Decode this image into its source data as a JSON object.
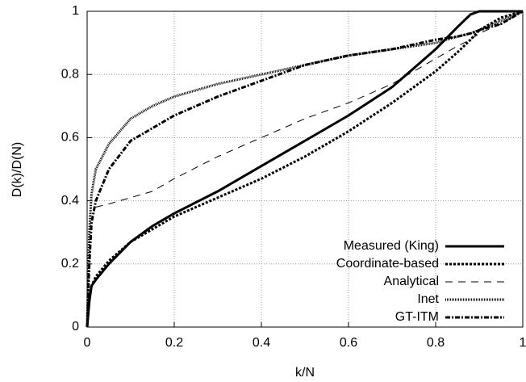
{
  "chart_data": {
    "type": "line",
    "xlabel": "k/N",
    "ylabel": "D(k)/D(N)",
    "x": [
      0,
      0.005,
      0.01,
      0.02,
      0.05,
      0.1,
      0.15,
      0.2,
      0.3,
      0.4,
      0.5,
      0.6,
      0.7,
      0.8,
      0.85,
      0.88,
      0.9,
      0.95,
      1
    ],
    "series": [
      {
        "name": "Measured (King)",
        "color": "#000000",
        "width": 3,
        "dash": "none",
        "values": [
          0,
          0.08,
          0.13,
          0.15,
          0.2,
          0.27,
          0.32,
          0.36,
          0.43,
          0.51,
          0.59,
          0.67,
          0.76,
          0.88,
          0.95,
          0.99,
          1,
          1,
          1
        ]
      },
      {
        "name": "Coordinate-based",
        "color": "#000000",
        "width": 3,
        "dash": "3,2",
        "values": [
          0,
          0.09,
          0.13,
          0.16,
          0.21,
          0.27,
          0.31,
          0.35,
          0.41,
          0.47,
          0.54,
          0.62,
          0.71,
          0.81,
          0.87,
          0.91,
          0.94,
          0.98,
          1
        ]
      },
      {
        "name": "Analytical",
        "color": "#000000",
        "width": 1,
        "dash": "9,7",
        "values": [
          null,
          null,
          null,
          0.38,
          0.39,
          0.41,
          0.43,
          0.47,
          0.54,
          0.6,
          0.66,
          0.71,
          0.77,
          0.85,
          0.89,
          0.91,
          0.93,
          0.96,
          1
        ]
      },
      {
        "name": "Inet",
        "color": "#000000",
        "width": 3,
        "dash": "1,1",
        "values": [
          0,
          0.3,
          0.42,
          0.5,
          0.58,
          0.66,
          0.7,
          0.73,
          0.77,
          0.8,
          0.83,
          0.86,
          0.88,
          0.9,
          0.92,
          0.93,
          0.94,
          0.97,
          1
        ]
      },
      {
        "name": "GT-ITM",
        "color": "#000000",
        "width": 3,
        "dash": "6,2,2,2",
        "values": [
          0,
          0.2,
          0.33,
          0.4,
          0.5,
          0.59,
          0.63,
          0.67,
          0.73,
          0.78,
          0.83,
          0.86,
          0.88,
          0.91,
          0.92,
          0.93,
          0.94,
          0.96,
          1
        ]
      }
    ],
    "xlim": [
      0,
      1
    ],
    "ylim": [
      0,
      1
    ],
    "xticks": [
      0,
      0.2,
      0.4,
      0.6,
      0.8,
      1
    ],
    "yticks": [
      0,
      0.2,
      0.4,
      0.6,
      0.8,
      1
    ],
    "grid": true,
    "legend": "lower right"
  }
}
